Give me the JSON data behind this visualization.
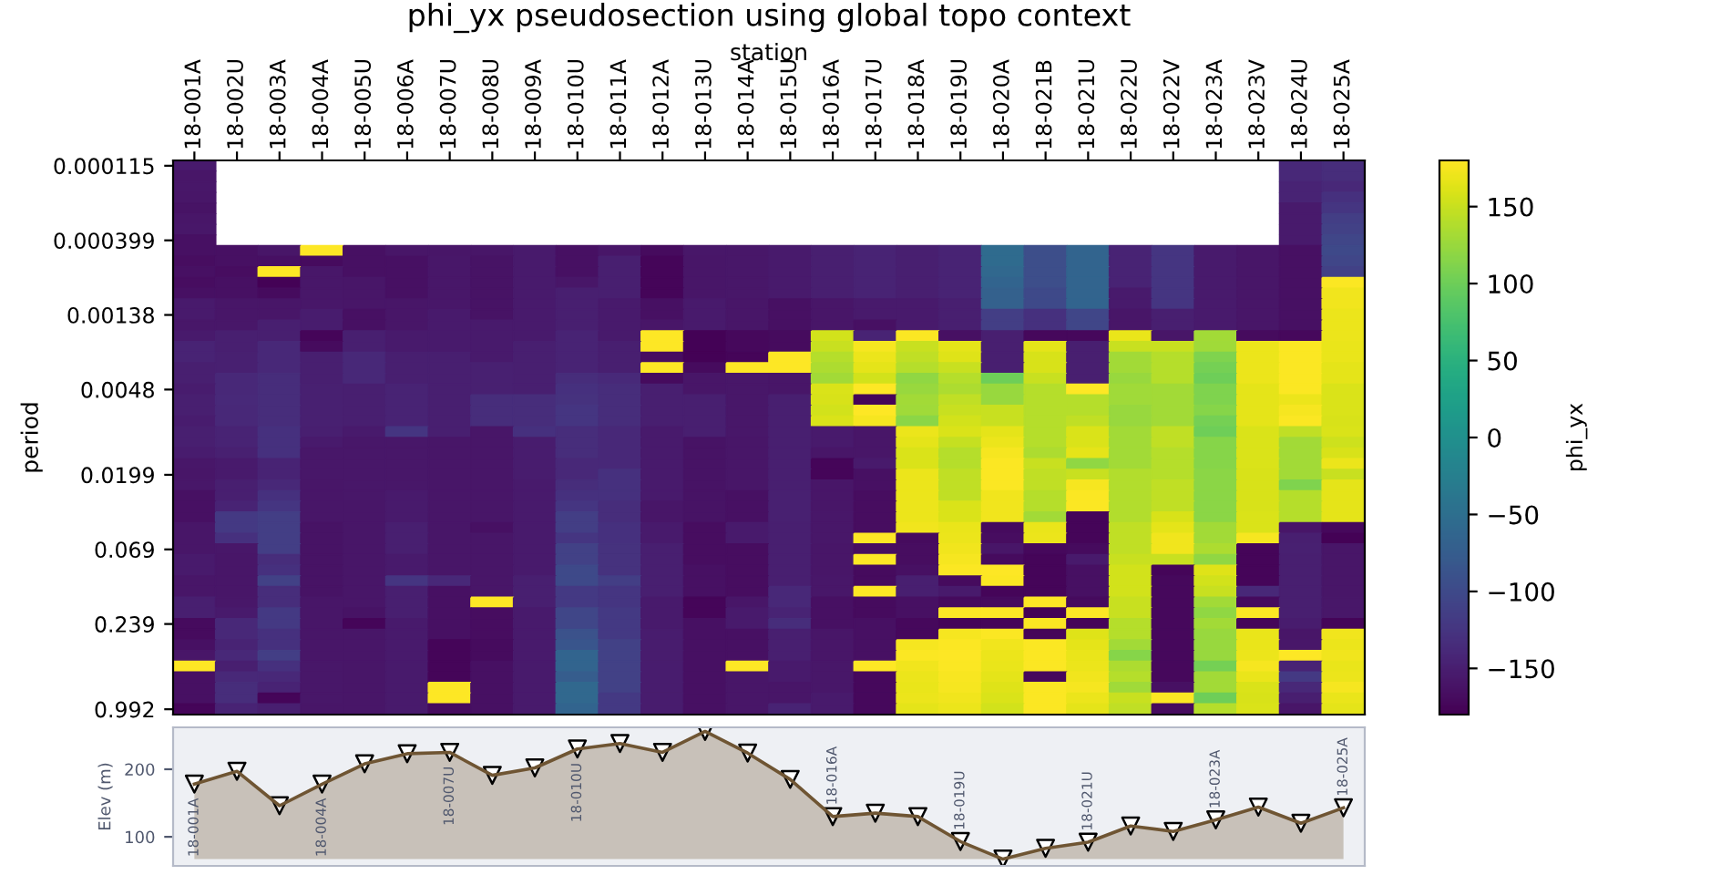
{
  "chart_data": [
    {
      "type": "heatmap",
      "title": "phi_yx pseudosection using global topo context",
      "xlabel": "station",
      "ylabel": "period",
      "clabel": "phi_yx",
      "categories": [
        "18-001A",
        "18-002U",
        "18-003A",
        "18-004A",
        "18-005U",
        "18-006A",
        "18-007U",
        "18-008U",
        "18-009A",
        "18-010U",
        "18-011A",
        "18-012A",
        "18-013U",
        "18-014A",
        "18-015U",
        "18-016A",
        "18-017U",
        "18-018A",
        "18-019U",
        "18-020A",
        "18-021B",
        "18-021U",
        "18-022U",
        "18-022V",
        "18-023A",
        "18-023V",
        "18-024U",
        "18-025A"
      ],
      "y_categories": [
        "0.000115",
        null,
        null,
        null,
        null,
        null,
        null,
        "0.000399",
        null,
        null,
        null,
        null,
        null,
        null,
        "0.00138",
        null,
        null,
        null,
        null,
        null,
        null,
        "0.0048",
        null,
        null,
        null,
        null,
        null,
        null,
        null,
        "0.0199",
        null,
        null,
        null,
        null,
        null,
        null,
        "0.069",
        null,
        null,
        null,
        null,
        null,
        null,
        "0.239",
        null,
        null,
        null,
        null,
        null,
        null,
        null,
        "0.992"
      ],
      "cells": [
        [
          -155,
          null,
          null,
          null,
          null,
          null,
          null,
          null,
          null,
          null,
          null,
          null,
          null,
          null,
          null,
          null,
          null,
          null,
          null,
          null,
          null,
          null,
          null,
          null,
          null,
          null,
          -140,
          -135
        ],
        [
          -160,
          null,
          null,
          null,
          null,
          null,
          null,
          null,
          null,
          null,
          null,
          null,
          null,
          null,
          null,
          null,
          null,
          null,
          null,
          null,
          null,
          null,
          null,
          null,
          null,
          null,
          -140,
          -135
        ],
        [
          -158,
          null,
          null,
          null,
          null,
          null,
          null,
          null,
          null,
          null,
          null,
          null,
          null,
          null,
          null,
          null,
          null,
          null,
          null,
          null,
          null,
          null,
          null,
          null,
          null,
          null,
          -145,
          -140
        ],
        [
          -160,
          null,
          null,
          null,
          null,
          null,
          null,
          null,
          null,
          null,
          null,
          null,
          null,
          null,
          null,
          null,
          null,
          null,
          null,
          null,
          null,
          null,
          null,
          null,
          null,
          null,
          -145,
          -130
        ],
        [
          -162,
          null,
          null,
          null,
          null,
          null,
          null,
          null,
          null,
          null,
          null,
          null,
          null,
          null,
          null,
          null,
          null,
          null,
          null,
          null,
          null,
          null,
          null,
          null,
          null,
          null,
          -155,
          -125
        ],
        [
          -160,
          null,
          null,
          null,
          null,
          null,
          null,
          null,
          null,
          null,
          null,
          null,
          null,
          null,
          null,
          null,
          null,
          null,
          null,
          null,
          null,
          null,
          null,
          null,
          null,
          null,
          -155,
          -115
        ],
        [
          -158,
          null,
          null,
          null,
          null,
          null,
          null,
          null,
          null,
          null,
          null,
          null,
          null,
          null,
          null,
          null,
          null,
          null,
          null,
          null,
          null,
          null,
          null,
          null,
          null,
          null,
          -155,
          -110
        ],
        [
          -165,
          null,
          null,
          null,
          null,
          null,
          null,
          null,
          null,
          null,
          null,
          null,
          null,
          null,
          null,
          null,
          null,
          null,
          null,
          null,
          null,
          null,
          null,
          null,
          null,
          null,
          -155,
          -105
        ],
        [
          -165,
          -165,
          -160,
          180,
          -165,
          -160,
          -160,
          -160,
          -155,
          -165,
          -160,
          -170,
          -158,
          -158,
          -155,
          -150,
          -145,
          -150,
          -145,
          -55,
          -95,
          -65,
          -145,
          -125,
          -155,
          -160,
          -165,
          -100
        ],
        [
          -168,
          -165,
          -165,
          -170,
          -165,
          -165,
          -158,
          -162,
          -155,
          -165,
          -150,
          -175,
          -160,
          -158,
          -155,
          -150,
          -145,
          -150,
          -145,
          -55,
          -95,
          -65,
          -145,
          -125,
          -155,
          -160,
          -165,
          -105
        ],
        [
          -165,
          -168,
          180,
          -158,
          -165,
          -165,
          -158,
          -162,
          -155,
          -165,
          -150,
          -175,
          -160,
          -158,
          -155,
          -150,
          -145,
          -150,
          -145,
          -60,
          -95,
          -65,
          -145,
          -125,
          -155,
          -160,
          -165,
          -110
        ],
        [
          -168,
          -165,
          -178,
          -158,
          -160,
          -165,
          -158,
          -162,
          -155,
          -160,
          -150,
          -175,
          -160,
          -158,
          -155,
          -150,
          -145,
          -150,
          -145,
          -65,
          -95,
          -65,
          -145,
          -125,
          -155,
          -160,
          -165,
          178
        ],
        [
          -165,
          -165,
          -170,
          -158,
          -160,
          -165,
          -158,
          -162,
          -155,
          -150,
          -150,
          -175,
          -160,
          -158,
          -155,
          -150,
          -145,
          -150,
          -145,
          -70,
          -100,
          -65,
          -155,
          -125,
          -155,
          -160,
          -165,
          172
        ],
        [
          -155,
          -160,
          -160,
          -158,
          -160,
          -160,
          -158,
          -162,
          -155,
          -150,
          -155,
          -165,
          -155,
          -160,
          -165,
          -160,
          -155,
          -155,
          -150,
          -70,
          -100,
          -65,
          -155,
          -125,
          -155,
          -160,
          -165,
          172
        ],
        [
          -155,
          -160,
          -160,
          -152,
          -165,
          -160,
          -155,
          -162,
          -155,
          -150,
          -155,
          -165,
          -155,
          -160,
          -165,
          -160,
          -155,
          -155,
          -150,
          -115,
          -130,
          -105,
          -160,
          -150,
          -155,
          -160,
          -165,
          170
        ],
        [
          -158,
          -158,
          -150,
          -152,
          -165,
          -160,
          -155,
          -155,
          -155,
          -150,
          -155,
          -160,
          -155,
          -160,
          -165,
          -160,
          -165,
          -155,
          -150,
          -115,
          -130,
          -105,
          -160,
          -150,
          -155,
          -160,
          -165,
          170
        ],
        [
          -155,
          -150,
          -150,
          -175,
          -150,
          -155,
          -155,
          -155,
          -155,
          -145,
          -155,
          180,
          -178,
          -172,
          -170,
          155,
          -145,
          178,
          -165,
          -150,
          -172,
          -172,
          168,
          -160,
          130,
          -170,
          -172,
          170
        ],
        [
          -145,
          -150,
          -140,
          -170,
          -150,
          -155,
          -155,
          -155,
          -150,
          -145,
          -150,
          180,
          -178,
          -172,
          -170,
          150,
          175,
          150,
          165,
          -150,
          165,
          -150,
          150,
          150,
          128,
          170,
          178,
          168
        ],
        [
          -145,
          -148,
          -140,
          -150,
          -140,
          -150,
          -150,
          -155,
          -150,
          -145,
          -150,
          -168,
          -178,
          -175,
          180,
          140,
          170,
          145,
          162,
          -150,
          158,
          -150,
          130,
          140,
          110,
          170,
          178,
          168
        ],
        [
          -150,
          -148,
          -140,
          -150,
          -140,
          -150,
          -150,
          -148,
          -150,
          -145,
          -150,
          180,
          -170,
          180,
          180,
          135,
          165,
          140,
          150,
          -150,
          158,
          -150,
          130,
          140,
          105,
          170,
          178,
          165
        ],
        [
          -150,
          -140,
          -135,
          -150,
          -140,
          -150,
          -150,
          -148,
          -150,
          -135,
          -138,
          -170,
          -160,
          -158,
          -160,
          130,
          155,
          120,
          140,
          100,
          150,
          -150,
          125,
          140,
          100,
          170,
          178,
          165
        ],
        [
          -152,
          -140,
          -135,
          -148,
          -150,
          -145,
          -150,
          -148,
          -150,
          -130,
          -135,
          -150,
          -160,
          -158,
          -160,
          160,
          180,
          125,
          135,
          125,
          140,
          180,
          128,
          130,
          110,
          165,
          178,
          160
        ],
        [
          -150,
          -138,
          -135,
          -148,
          -150,
          -145,
          -150,
          -135,
          -135,
          -128,
          -135,
          -150,
          -150,
          -158,
          -150,
          158,
          -175,
          130,
          145,
          125,
          140,
          140,
          128,
          130,
          110,
          165,
          170,
          160
        ],
        [
          -150,
          -140,
          -135,
          -148,
          -150,
          -145,
          -150,
          -135,
          -135,
          -125,
          -135,
          -150,
          -150,
          -158,
          -150,
          155,
          180,
          128,
          150,
          150,
          140,
          140,
          125,
          130,
          115,
          165,
          175,
          160
        ],
        [
          -152,
          -140,
          -135,
          -148,
          -150,
          -145,
          -150,
          -135,
          -135,
          -125,
          -135,
          -150,
          -150,
          -158,
          -150,
          160,
          175,
          118,
          155,
          150,
          140,
          145,
          125,
          130,
          105,
          165,
          178,
          158
        ],
        [
          -150,
          -145,
          -130,
          -150,
          -155,
          -125,
          -150,
          -160,
          -130,
          -135,
          -140,
          -155,
          -150,
          -158,
          -150,
          -155,
          -160,
          170,
          160,
          165,
          140,
          160,
          130,
          145,
          100,
          160,
          145,
          160
        ],
        [
          -150,
          -145,
          -130,
          -155,
          -158,
          -158,
          -160,
          -160,
          -152,
          -135,
          -140,
          -155,
          -162,
          -160,
          -150,
          -155,
          -160,
          165,
          148,
          170,
          140,
          160,
          130,
          145,
          115,
          160,
          130,
          152
        ],
        [
          -152,
          -148,
          -130,
          -158,
          -158,
          -158,
          -160,
          -160,
          -152,
          -135,
          -140,
          -155,
          -162,
          -160,
          -150,
          -160,
          -160,
          160,
          140,
          175,
          135,
          165,
          130,
          140,
          115,
          160,
          130,
          158
        ],
        [
          -158,
          -155,
          -145,
          -158,
          -158,
          -158,
          -160,
          -160,
          -152,
          -140,
          -140,
          -155,
          -162,
          -160,
          -150,
          -175,
          -155,
          160,
          140,
          178,
          150,
          120,
          130,
          140,
          115,
          160,
          130,
          170
        ],
        [
          -160,
          -155,
          -145,
          -158,
          -158,
          -158,
          -160,
          -160,
          -152,
          -140,
          -130,
          -155,
          -162,
          -160,
          -150,
          -175,
          -165,
          170,
          145,
          178,
          145,
          150,
          138,
          140,
          118,
          158,
          130,
          150
        ],
        [
          -158,
          -150,
          -140,
          -160,
          -158,
          -158,
          -160,
          -160,
          -155,
          -135,
          -130,
          -155,
          -162,
          -160,
          -150,
          -160,
          -165,
          170,
          145,
          178,
          145,
          175,
          138,
          145,
          118,
          158,
          110,
          165
        ],
        [
          -165,
          -150,
          -130,
          -160,
          -158,
          -155,
          -160,
          -160,
          -155,
          -130,
          -130,
          -155,
          -162,
          -165,
          -148,
          -160,
          -168,
          170,
          145,
          172,
          140,
          178,
          138,
          145,
          118,
          158,
          140,
          165
        ],
        [
          -165,
          -145,
          -125,
          -160,
          -160,
          -155,
          -160,
          -160,
          -155,
          -125,
          -135,
          -160,
          -162,
          -165,
          -148,
          -160,
          -168,
          170,
          160,
          172,
          140,
          178,
          138,
          145,
          118,
          158,
          140,
          165
        ],
        [
          -165,
          -120,
          -115,
          -160,
          -160,
          -155,
          -160,
          -160,
          -155,
          -115,
          -135,
          -160,
          -162,
          -165,
          -148,
          -158,
          -168,
          170,
          160,
          172,
          130,
          -175,
          138,
          158,
          118,
          160,
          140,
          165
        ],
        [
          -160,
          -120,
          -115,
          -163,
          -160,
          -150,
          -160,
          -165,
          -155,
          -115,
          -130,
          -155,
          -168,
          -155,
          -150,
          -158,
          -168,
          172,
          168,
          -170,
          168,
          -175,
          145,
          165,
          130,
          160,
          -160,
          -172
        ],
        [
          -160,
          -130,
          -115,
          -163,
          -160,
          -150,
          -160,
          -160,
          -155,
          -125,
          -130,
          -155,
          -168,
          -155,
          -150,
          -158,
          180,
          -170,
          170,
          -168,
          170,
          -175,
          145,
          172,
          130,
          175,
          -150,
          -178
        ],
        [
          -160,
          -158,
          -115,
          -163,
          -160,
          -150,
          -160,
          -160,
          -155,
          -110,
          -128,
          -150,
          -168,
          -168,
          -150,
          -160,
          -168,
          -168,
          172,
          -160,
          -172,
          -170,
          145,
          172,
          135,
          -175,
          -148,
          -160
        ],
        [
          -155,
          -160,
          -135,
          -162,
          -160,
          -155,
          -160,
          -160,
          -155,
          -110,
          -128,
          -150,
          -168,
          -168,
          -150,
          -160,
          180,
          -168,
          175,
          -170,
          -175,
          -155,
          150,
          150,
          120,
          -175,
          -150,
          -160
        ],
        [
          -155,
          -160,
          -130,
          -162,
          -160,
          -155,
          -160,
          -160,
          -155,
          -100,
          -128,
          -150,
          -165,
          -168,
          -150,
          -160,
          -170,
          -165,
          178,
          180,
          -175,
          -165,
          155,
          -175,
          162,
          -175,
          -150,
          -160
        ],
        [
          -160,
          -160,
          -110,
          -162,
          -160,
          -125,
          -140,
          -160,
          -150,
          -100,
          -115,
          -150,
          -165,
          -168,
          -150,
          -158,
          -170,
          -150,
          -170,
          178,
          -175,
          -165,
          155,
          -172,
          155,
          -175,
          -150,
          -160
        ],
        [
          -160,
          -160,
          -135,
          -162,
          -160,
          -150,
          -165,
          -160,
          -150,
          -120,
          -125,
          -150,
          -165,
          -168,
          -140,
          -158,
          180,
          -150,
          -155,
          -175,
          -175,
          -165,
          155,
          -172,
          150,
          -140,
          -150,
          -160
        ],
        [
          -150,
          -158,
          -135,
          -160,
          -160,
          -150,
          -165,
          180,
          -150,
          -120,
          -125,
          -155,
          -175,
          -160,
          -140,
          -165,
          -170,
          -165,
          -170,
          -170,
          180,
          -170,
          150,
          -172,
          130,
          -170,
          -150,
          -158
        ],
        [
          -150,
          -155,
          -120,
          -160,
          -162,
          -150,
          -165,
          -168,
          -155,
          -105,
          -120,
          -155,
          -175,
          -155,
          -145,
          -165,
          -170,
          -165,
          180,
          180,
          -178,
          180,
          150,
          -172,
          120,
          178,
          -150,
          -158
        ],
        [
          -170,
          -140,
          -120,
          -160,
          -175,
          -155,
          -165,
          -168,
          -155,
          -105,
          -120,
          -155,
          -165,
          -155,
          -135,
          -165,
          -165,
          -172,
          -175,
          -175,
          178,
          -175,
          140,
          -172,
          130,
          -175,
          -152,
          -175
        ],
        [
          -170,
          -140,
          -130,
          -160,
          -160,
          -155,
          -165,
          -168,
          -155,
          -90,
          -120,
          -152,
          -165,
          -165,
          -150,
          -160,
          -165,
          -172,
          175,
          178,
          -175,
          162,
          140,
          -172,
          125,
          168,
          -160,
          172
        ],
        [
          -165,
          -145,
          -130,
          -160,
          -160,
          -155,
          -175,
          -170,
          -155,
          -85,
          -110,
          -152,
          -165,
          -165,
          -150,
          -160,
          -165,
          175,
          178,
          172,
          178,
          165,
          130,
          -172,
          125,
          168,
          -158,
          170
        ],
        [
          -160,
          -140,
          -115,
          -160,
          -160,
          -155,
          -175,
          -170,
          -155,
          -65,
          -110,
          -152,
          -165,
          -165,
          -150,
          -160,
          -165,
          178,
          180,
          170,
          178,
          168,
          115,
          -172,
          125,
          170,
          180,
          172
        ],
        [
          180,
          -150,
          -130,
          -158,
          -160,
          -155,
          -175,
          -165,
          -155,
          -65,
          -110,
          -152,
          -165,
          180,
          -155,
          -158,
          180,
          172,
          178,
          168,
          178,
          170,
          135,
          -172,
          105,
          175,
          -145,
          168
        ],
        [
          -165,
          -140,
          -140,
          -158,
          -160,
          -155,
          -175,
          -165,
          -155,
          -75,
          -110,
          -152,
          -165,
          -160,
          -155,
          -158,
          -172,
          170,
          176,
          165,
          -172,
          172,
          140,
          -172,
          130,
          168,
          -120,
          170
        ],
        [
          -165,
          -135,
          -145,
          -158,
          -160,
          -155,
          180,
          -165,
          -155,
          -60,
          -110,
          -152,
          -165,
          -160,
          -160,
          -158,
          -172,
          168,
          175,
          162,
          178,
          175,
          128,
          -165,
          130,
          160,
          -140,
          175
        ],
        [
          -165,
          -135,
          -175,
          -158,
          -160,
          -155,
          180,
          -165,
          -155,
          -60,
          -120,
          -152,
          -165,
          -160,
          -160,
          -155,
          -172,
          170,
          172,
          160,
          178,
          170,
          150,
          178,
          100,
          158,
          -150,
          168
        ],
        [
          -175,
          -145,
          -150,
          -160,
          -160,
          -155,
          -170,
          -165,
          -155,
          -65,
          -120,
          -152,
          -165,
          -160,
          -145,
          -155,
          -172,
          165,
          170,
          155,
          178,
          165,
          145,
          -170,
          140,
          160,
          -160,
          165
        ]
      ],
      "clim": [
        -180,
        180
      ],
      "cticks": [
        -150,
        -100,
        -50,
        0,
        50,
        100,
        150
      ]
    },
    {
      "type": "area",
      "categories": [
        null,
        null,
        null,
        null,
        null,
        null,
        null,
        null,
        null,
        null,
        null,
        null,
        null,
        null,
        null,
        null,
        null,
        null,
        null,
        null,
        null,
        null,
        null,
        null,
        null,
        null,
        null,
        null
      ],
      "ylabel": "Elev (m)",
      "ylim": [
        57,
        262
      ],
      "yticks": [
        100,
        200
      ],
      "tick_labels": "y",
      "series": [
        {
          "type": "area",
          "color": "#6f5533",
          "values": [
            178,
            197,
            146,
            178,
            208,
            223,
            225,
            191,
            202,
            230,
            238,
            225,
            256,
            224,
            185,
            130,
            135,
            130,
            93,
            67,
            83,
            92,
            116,
            108,
            125,
            144,
            120,
            143
          ]
        },
        {
          "type": "scatter",
          "color": "#ffffff",
          "marker": "triangle",
          "values": [
            178,
            197,
            146,
            178,
            208,
            223,
            225,
            191,
            202,
            230,
            238,
            225,
            256,
            224,
            185,
            130,
            135,
            130,
            93,
            67,
            83,
            92,
            116,
            108,
            125,
            144,
            120,
            143
          ],
          "value_labels": [
            "18-001A",
            null,
            null,
            "18-004A",
            null,
            null,
            "18-007U",
            null,
            null,
            "18-010U",
            null,
            null,
            null,
            null,
            null,
            "18-016A",
            null,
            null,
            "18-019U",
            null,
            null,
            "18-021U",
            null,
            null,
            "18-023A",
            null,
            null,
            "18-025A"
          ]
        }
      ]
    }
  ]
}
